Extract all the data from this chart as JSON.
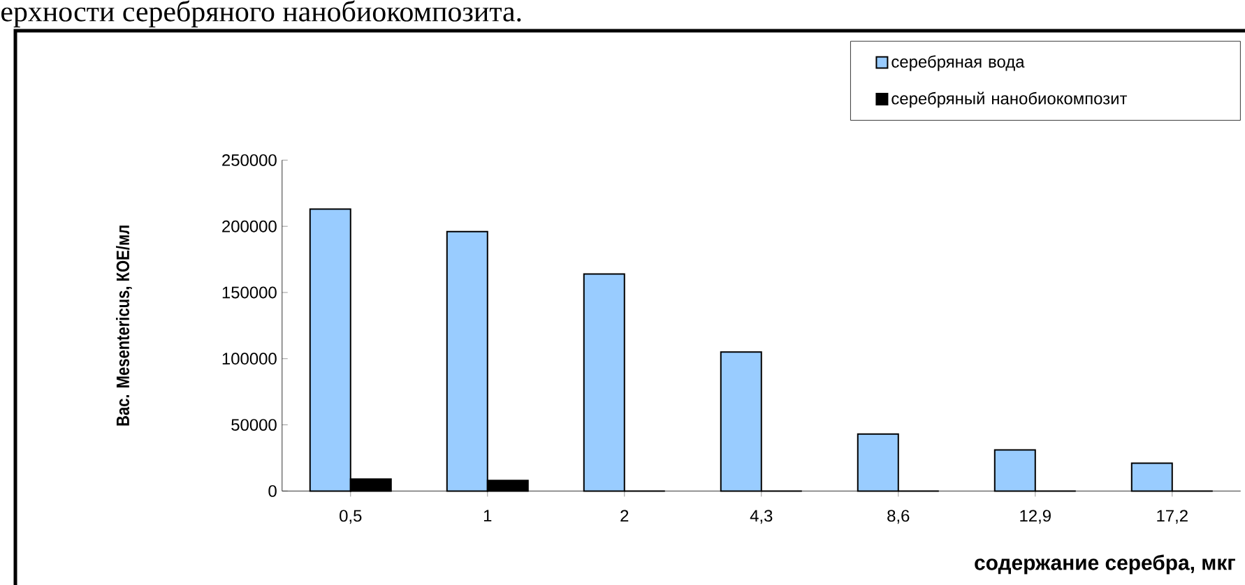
{
  "chart_data": {
    "type": "bar",
    "title": "ерхности серебряного нанобиокомпозита.",
    "categories": [
      "0,5",
      "1",
      "2",
      "4,3",
      "8,6",
      "12,9",
      "17,2"
    ],
    "series": [
      {
        "name": "серебряная вода",
        "color": "#99ccff",
        "values": [
          213000,
          196000,
          164000,
          105000,
          43000,
          31000,
          21000
        ]
      },
      {
        "name": "серебряный нанобиокомпозит",
        "color": "#000000",
        "values": [
          9000,
          8000,
          0,
          0,
          0,
          0,
          0
        ]
      }
    ],
    "xlabel": "содержание серебра, мкг",
    "ylabel": "Bac. Mesentericus, КОЕ/мл",
    "ylim": [
      0,
      250000
    ],
    "yticks": [
      0,
      50000,
      100000,
      150000,
      200000,
      250000
    ],
    "legend": "top right",
    "grid": false
  }
}
